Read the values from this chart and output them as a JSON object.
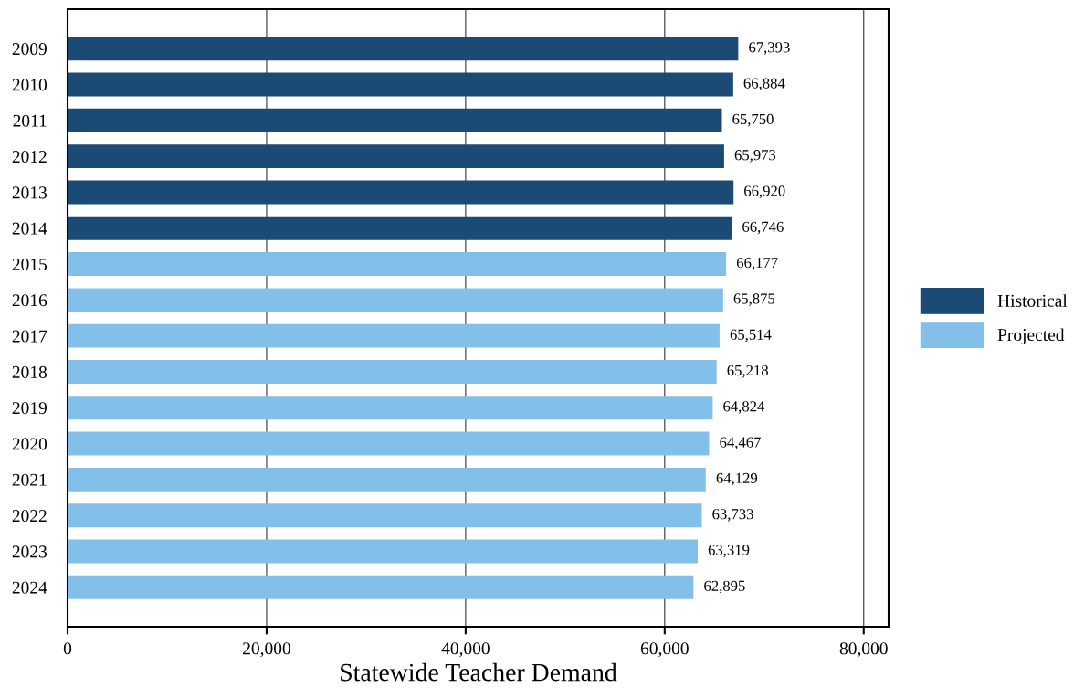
{
  "chart_data": {
    "type": "bar",
    "orientation": "horizontal",
    "xlabel": "Statewide Teacher Demand",
    "categories": [
      "2009",
      "2010",
      "2011",
      "2012",
      "2013",
      "2014",
      "2015",
      "2016",
      "2017",
      "2018",
      "2019",
      "2020",
      "2021",
      "2022",
      "2023",
      "2024"
    ],
    "series": [
      {
        "name": "Historical",
        "color": "#1b4a74",
        "values": [
          67393,
          66884,
          65750,
          65973,
          66920,
          66746,
          null,
          null,
          null,
          null,
          null,
          null,
          null,
          null,
          null,
          null
        ],
        "value_labels": [
          "67,393",
          "66,884",
          "65,750",
          "65,973",
          "66,920",
          "66,746",
          null,
          null,
          null,
          null,
          null,
          null,
          null,
          null,
          null,
          null
        ]
      },
      {
        "name": "Projected",
        "color": "#82bfe9",
        "values": [
          null,
          null,
          null,
          null,
          null,
          null,
          66177,
          65875,
          65514,
          65218,
          64824,
          64467,
          64129,
          63733,
          63319,
          62895
        ],
        "value_labels": [
          null,
          null,
          null,
          null,
          null,
          null,
          "66,177",
          "65,875",
          "65,514",
          "65,218",
          "64,824",
          "64,467",
          "64,129",
          "63,733",
          "63,319",
          "62,895"
        ]
      }
    ],
    "xlim": [
      0,
      82500
    ],
    "xticks": [
      0,
      {
        "value": 20000,
        "label": "20,000"
      },
      {
        "value": 40000,
        "label": "40,000"
      },
      {
        "value": 60000,
        "label": "60,000"
      },
      {
        "value": 80000,
        "label": "80,000"
      }
    ],
    "grid": "x",
    "legend": "right"
  }
}
